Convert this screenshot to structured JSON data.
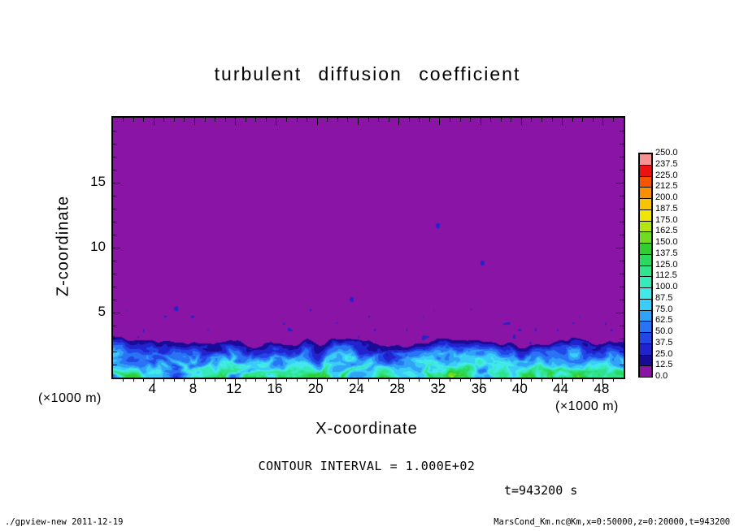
{
  "title": "turbulent diffusion coefficient",
  "axes": {
    "xlabel": "X-coordinate",
    "ylabel": "Z-coordinate",
    "x_unit_left": "(×1000 m)",
    "x_unit_right": "(×1000 m)",
    "x_tick_values": [
      4,
      8,
      12,
      16,
      20,
      24,
      28,
      32,
      36,
      40,
      44,
      48
    ],
    "x_tick_labels": [
      "4",
      "8",
      "12",
      "16",
      "20",
      "24",
      "28",
      "32",
      "36",
      "40",
      "44",
      "48"
    ],
    "y_tick_values": [
      5,
      10,
      15
    ],
    "y_tick_labels": [
      "5",
      "10",
      "15"
    ],
    "x_range": [
      0,
      50
    ],
    "y_range": [
      0,
      20
    ]
  },
  "annotations": {
    "contour_interval": "CONTOUR INTERVAL = 1.000E+02",
    "time": "t=943200 s"
  },
  "footer": {
    "left": "./gpview-new  2011-12-19",
    "right": "MarsCond_Km.nc@Km,x=0:50000,z=0:20000,t=943200"
  },
  "colorbar": {
    "labels_top_to_bottom": [
      "250.0",
      "237.5",
      "225.0",
      "212.5",
      "200.0",
      "187.5",
      "175.0",
      "162.5",
      "150.0",
      "137.5",
      "125.0",
      "112.5",
      "100.0",
      "87.5",
      "75.0",
      "62.5",
      "50.0",
      "37.5",
      "25.0",
      "12.5",
      "0.0"
    ],
    "colors_bottom_to_top": [
      "#8a14a6",
      "#190a97",
      "#2123cf",
      "#2347e7",
      "#2973f5",
      "#30a2f8",
      "#39cdf8",
      "#41e9e9",
      "#38e9bb",
      "#30e38c",
      "#2ad95e",
      "#33cc33",
      "#72da22",
      "#b2e512",
      "#eee603",
      "#f8c300",
      "#f89000",
      "#f85500",
      "#ee1111",
      "#f59393"
    ]
  },
  "chart_data": {
    "type": "heatmap",
    "title": "turbulent diffusion coefficient",
    "xlabel": "X-coordinate (×1000 m)",
    "ylabel": "Z-coordinate (×1000 m)",
    "xlim": [
      0,
      50
    ],
    "ylim": [
      0,
      20
    ],
    "x_ticks": [
      4,
      8,
      12,
      16,
      20,
      24,
      28,
      32,
      36,
      40,
      44,
      48
    ],
    "y_ticks": [
      5,
      10,
      15
    ],
    "contour_interval": 100.0,
    "time_label": "t=943200 s",
    "grid": false,
    "legend_position": "right",
    "levels": [
      0.0,
      12.5,
      25.0,
      37.5,
      50.0,
      62.5,
      75.0,
      87.5,
      100.0,
      112.5,
      125.0,
      137.5,
      150.0,
      162.5,
      175.0,
      187.5,
      200.0,
      212.5,
      225.0,
      237.5,
      250.0
    ],
    "palette_low_to_high": [
      "#8a14a6",
      "#190a97",
      "#2123cf",
      "#2347e7",
      "#2973f5",
      "#30a2f8",
      "#39cdf8",
      "#41e9e9",
      "#38e9bb",
      "#30e38c",
      "#2ad95e",
      "#33cc33",
      "#72da22",
      "#b2e512",
      "#eee603",
      "#f8c300",
      "#f89000",
      "#f85500",
      "#ee1111",
      "#f59393"
    ],
    "field": {
      "description": "Background value ~0 (purple) over most of the domain; turbulent boundary layer of eddies below z ≈ 2–4.5 (×1000 m) with values mostly 25–150, brightest cores ~90–160 near the surface; sparse small speckles of ~25–30 just above the layer",
      "background_value": 0,
      "layer_top_base_km": 1.7,
      "layer_top_amp_km": 2.6,
      "peak_value": 135,
      "seed": 20111219,
      "speckles": [
        {
          "x": 31.8,
          "z": 11.7,
          "v": 30
        },
        {
          "x": 36.2,
          "z": 8.8,
          "v": 26
        },
        {
          "x": 23.4,
          "z": 6.0,
          "v": 26
        },
        {
          "x": 6.2,
          "z": 5.3,
          "v": 28
        }
      ]
    }
  }
}
